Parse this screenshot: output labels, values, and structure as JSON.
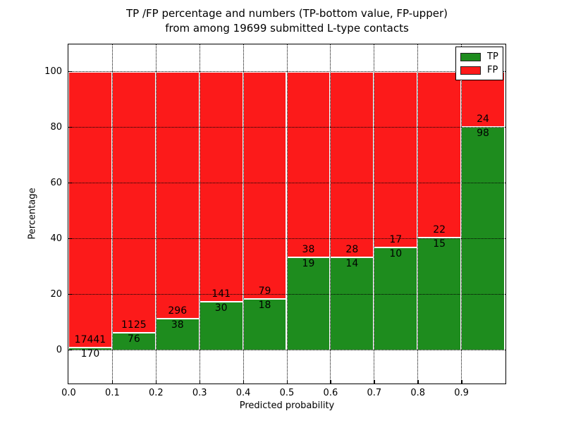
{
  "title": {
    "line1": "TP /FP percentage and numbers (TP-bottom value, FP-upper)",
    "line2": "from among 19699 submitted L-type contacts"
  },
  "axes": {
    "xlabel": "Predicted probability",
    "ylabel": "Percentage",
    "x_tick_labels": [
      "0.0",
      "0.1",
      "0.2",
      "0.3",
      "0.4",
      "0.5",
      "0.6",
      "0.7",
      "0.8",
      "0.9"
    ],
    "y_tick_labels": [
      "0",
      "20",
      "40",
      "60",
      "80",
      "100"
    ],
    "y_tick_values": [
      0,
      20,
      40,
      60,
      80,
      100
    ],
    "grid": "dotted black, vertical at each 0.1 and horizontal at each 20"
  },
  "legend": {
    "position": "upper right",
    "entries": [
      {
        "label": "TP",
        "color": "#1e8c1e"
      },
      {
        "label": "FP",
        "color": "#fc1a1a"
      }
    ]
  },
  "chart_data": {
    "type": "bar",
    "stacked": true,
    "normalized": "each bin stacked to 100%",
    "title": "TP /FP percentage and numbers (TP-bottom value, FP-upper) from among 19699 submitted L-type contacts",
    "xlabel": "Predicted probability",
    "ylabel": "Percentage",
    "total_contacts": 19699,
    "bin_edges": [
      0.0,
      0.1,
      0.2,
      0.3,
      0.4,
      0.5,
      0.6,
      0.7,
      0.8,
      0.9,
      1.0
    ],
    "bin_labels": [
      "0.0-0.1",
      "0.1-0.2",
      "0.2-0.3",
      "0.3-0.4",
      "0.4-0.5",
      "0.5-0.6",
      "0.6-0.7",
      "0.7-0.8",
      "0.8-0.9",
      "0.9-1.0"
    ],
    "series": [
      {
        "name": "TP",
        "color": "#1e8c1e",
        "counts": [
          170,
          76,
          38,
          30,
          18,
          19,
          14,
          10,
          15,
          98
        ]
      },
      {
        "name": "FP",
        "color": "#fc1a1a",
        "counts": [
          17441,
          1125,
          296,
          141,
          79,
          38,
          28,
          17,
          22,
          24
        ]
      }
    ],
    "tp_percent_of_bin": [
      0.97,
      6.33,
      11.38,
      17.54,
      18.56,
      33.33,
      33.33,
      37.04,
      40.54,
      80.33
    ],
    "xlim": [
      0.0,
      1.0
    ],
    "ylim_display": [
      -12,
      110
    ],
    "bar_edge_color": "#ffffff"
  }
}
